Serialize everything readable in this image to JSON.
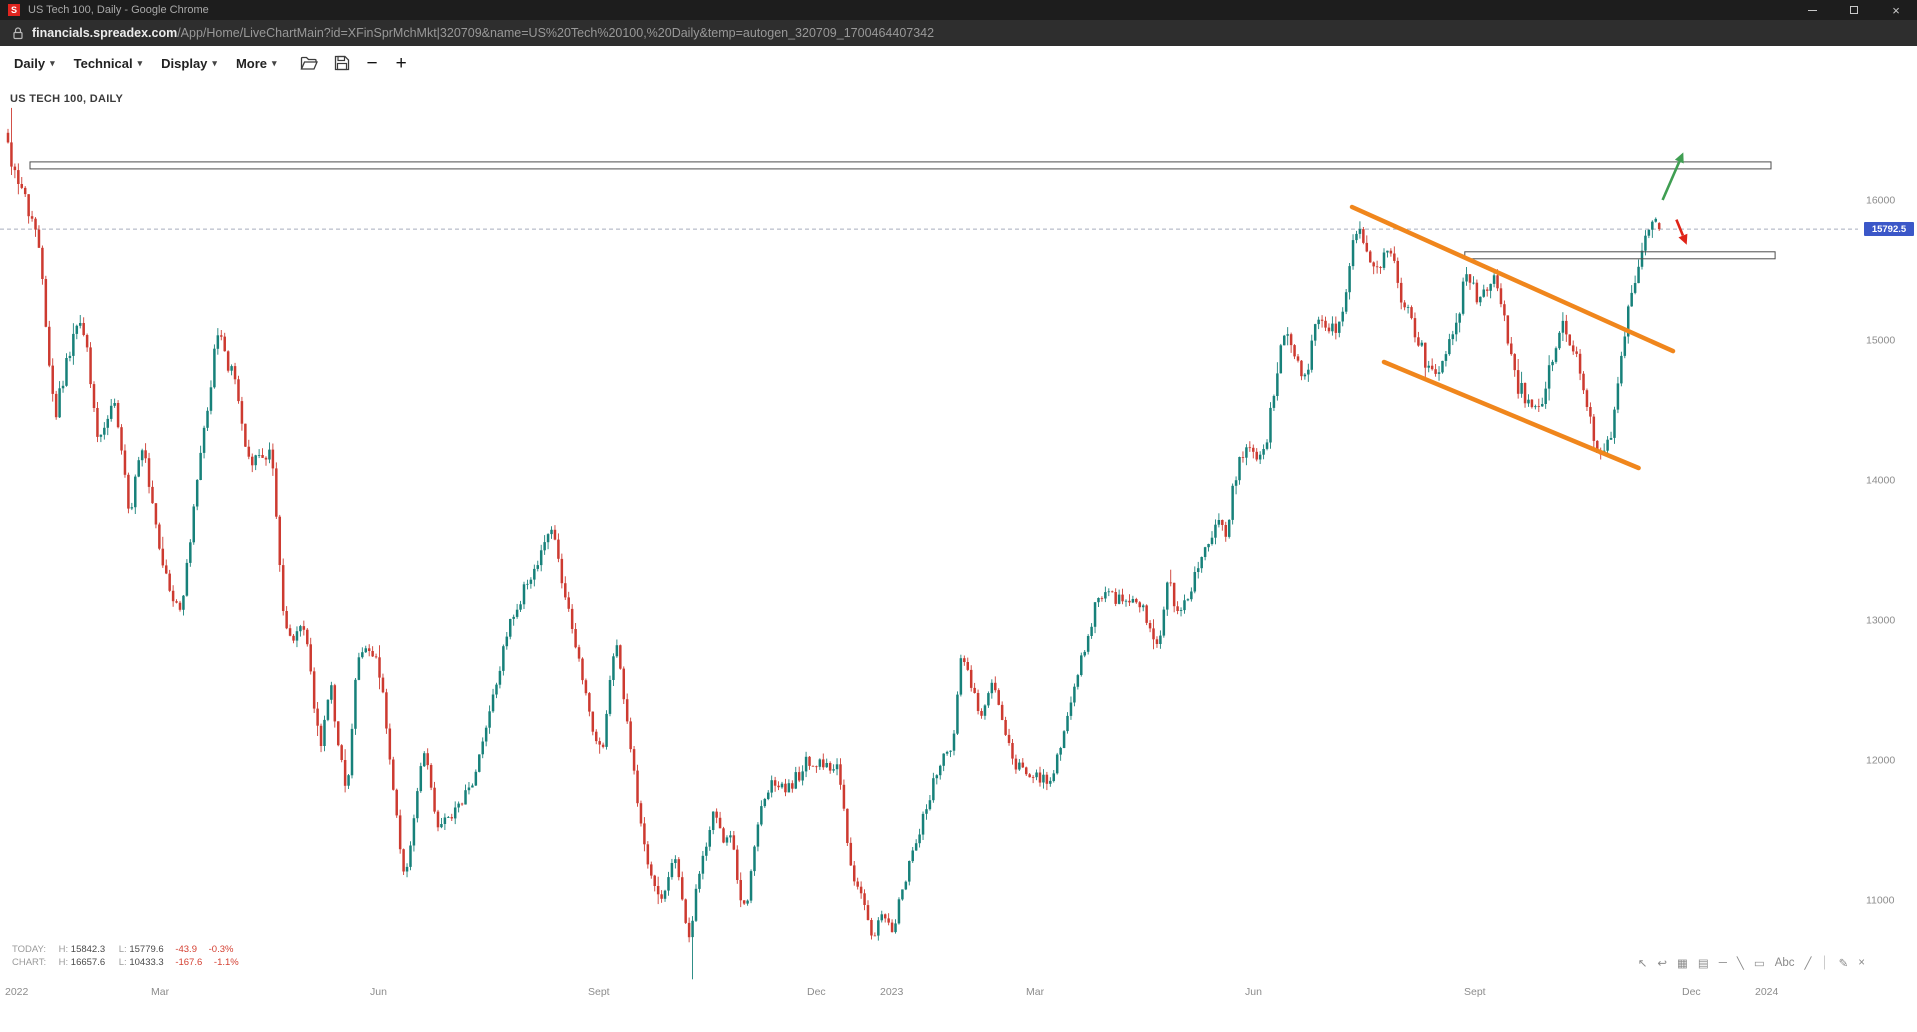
{
  "window": {
    "title": "US Tech 100, Daily - Google Chrome",
    "favicon_letter": "S",
    "controls": {
      "close": "×"
    }
  },
  "address_bar": {
    "domain": "financials.spreadex.com",
    "path": "/App/Home/LiveChartMain?id=XFinSprMchMkt|320709&name=US%20Tech%20100,%20Daily&temp=autogen_320709_1700464407342"
  },
  "toolbar": {
    "menus": [
      {
        "label": "Daily"
      },
      {
        "label": "Technical"
      },
      {
        "label": "Display"
      },
      {
        "label": "More"
      }
    ],
    "caret": "▾",
    "zoom_out": "−",
    "zoom_in": "+"
  },
  "chart": {
    "title": "US TECH 100, DAILY",
    "price_label": "15792.5",
    "badge_color": "#3b57c8",
    "stats": {
      "h_label": "H:",
      "l_label": "L:",
      "rows": [
        {
          "label": "TODAY:",
          "h": "15842.3",
          "l": "15779.6",
          "chg": "-43.9",
          "pct": "-0.3%"
        },
        {
          "label": "CHART:",
          "h": "16657.6",
          "l": "10433.3",
          "chg": "-167.6",
          "pct": "-1.1%"
        }
      ]
    },
    "draw_tools": [
      {
        "name": "pointer-tool",
        "glyph": "↖",
        "interactable": true
      },
      {
        "name": "connector-tool",
        "glyph": "↩",
        "interactable": true
      },
      {
        "name": "grid-tool",
        "glyph": "▦",
        "interactable": true
      },
      {
        "name": "chart-type-tool",
        "glyph": "▤",
        "interactable": true
      },
      {
        "name": "trendline-tool",
        "glyph": "─",
        "interactable": true
      },
      {
        "name": "ray-tool",
        "glyph": "╲",
        "interactable": true
      },
      {
        "name": "rectangle-tool",
        "glyph": "▭",
        "interactable": true
      },
      {
        "name": "text-tool",
        "glyph": "Abc",
        "interactable": true
      },
      {
        "name": "line-tool",
        "glyph": "╱",
        "interactable": true
      },
      {
        "name": "separator",
        "glyph": "│",
        "interactable": false
      },
      {
        "name": "pencil-tool",
        "glyph": "✎",
        "interactable": true
      },
      {
        "name": "close-tool",
        "glyph": "×",
        "interactable": true
      }
    ]
  },
  "chart_data": {
    "type": "candlestick",
    "title": "US TECH 100, DAILY",
    "instrument": "US Tech 100",
    "timeframe": "Daily",
    "current_price": 15792.5,
    "today": {
      "high": 15842.3,
      "low": 15779.6,
      "change": -43.9,
      "change_pct": -0.3
    },
    "range": {
      "high": 16657.6,
      "low": 10433.3
    },
    "num_candles": 481,
    "colors": {
      "up": "#17817a",
      "down": "#cd3a30",
      "channel": "#f0861c",
      "zone": "#4d4d4d",
      "dashed": "#a7adbd",
      "arrow_up": "#3f9e52",
      "arrow_down": "#e02418"
    },
    "y_ticks": [
      16000,
      15000,
      14000,
      13000,
      12000,
      11000
    ],
    "x_ticks": [
      {
        "l": "2022",
        "m": 0
      },
      {
        "l": "Mar",
        "m": 2
      },
      {
        "l": "Jun",
        "m": 5
      },
      {
        "l": "Sept",
        "m": 8
      },
      {
        "l": "Dec",
        "m": 11
      },
      {
        "l": "2023",
        "m": 12
      },
      {
        "l": "Mar",
        "m": 14
      },
      {
        "l": "Jun",
        "m": 17
      },
      {
        "l": "Sept",
        "m": 20
      },
      {
        "l": "Dec",
        "m": 23
      },
      {
        "l": "2024",
        "m": 24
      }
    ],
    "anchors": [
      [
        0,
        16480
      ],
      [
        1,
        16320
      ],
      [
        9,
        15750
      ],
      [
        14,
        14450
      ],
      [
        19,
        15000
      ],
      [
        22,
        15150
      ],
      [
        27,
        14250
      ],
      [
        31,
        14600
      ],
      [
        36,
        13700
      ],
      [
        37.5,
        14050
      ],
      [
        39.5,
        14240
      ],
      [
        46,
        13320
      ],
      [
        50.5,
        13050
      ],
      [
        61.5,
        15100
      ],
      [
        63.5,
        14840
      ],
      [
        66.5,
        14750
      ],
      [
        70.5,
        14100
      ],
      [
        77,
        14200
      ],
      [
        80.5,
        13000
      ],
      [
        83,
        12850
      ],
      [
        86.5,
        13000
      ],
      [
        91,
        12050
      ],
      [
        94,
        12560
      ],
      [
        99,
        11700
      ],
      [
        101.5,
        12680
      ],
      [
        105.5,
        12800
      ],
      [
        109,
        12600
      ],
      [
        111.5,
        12000
      ],
      [
        115.5,
        11100
      ],
      [
        121.5,
        12100
      ],
      [
        125.5,
        11500
      ],
      [
        135,
        11800
      ],
      [
        146,
        12950
      ],
      [
        158.5,
        13650
      ],
      [
        170,
        12270
      ],
      [
        173,
        12050
      ],
      [
        177,
        12900
      ],
      [
        185.5,
        11300
      ],
      [
        190.5,
        10970
      ],
      [
        194.5,
        11360
      ],
      [
        198.5,
        10600
      ],
      [
        200,
        11030
      ],
      [
        206,
        11670
      ],
      [
        208.5,
        11340
      ],
      [
        210,
        11550
      ],
      [
        214.5,
        10860
      ],
      [
        219.5,
        11710
      ],
      [
        222.5,
        11850
      ],
      [
        227,
        11780
      ],
      [
        232.5,
        12000
      ],
      [
        242,
        11950
      ],
      [
        245,
        11250
      ],
      [
        249,
        10980
      ],
      [
        252.5,
        10680
      ],
      [
        254,
        10940
      ],
      [
        257.5,
        10740
      ],
      [
        260,
        11050
      ],
      [
        272,
        12050
      ],
      [
        275,
        12100
      ],
      [
        277.5,
        12800
      ],
      [
        283.5,
        12300
      ],
      [
        286.5,
        12560
      ],
      [
        293,
        11970
      ],
      [
        303.5,
        11830
      ],
      [
        311,
        12600
      ],
      [
        317.5,
        13180
      ],
      [
        330,
        13100
      ],
      [
        334.5,
        12730
      ],
      [
        337,
        13240
      ],
      [
        341.5,
        13050
      ],
      [
        351.5,
        13700
      ],
      [
        355,
        13600
      ],
      [
        356,
        13940
      ],
      [
        360,
        14250
      ],
      [
        365,
        14150
      ],
      [
        371.5,
        15100
      ],
      [
        377.5,
        14680
      ],
      [
        381,
        15180
      ],
      [
        387,
        15050
      ],
      [
        392.5,
        15840
      ],
      [
        396.5,
        15560
      ],
      [
        399.5,
        15520
      ],
      [
        401.5,
        15750
      ],
      [
        405.5,
        15300
      ],
      [
        415.5,
        14700
      ],
      [
        422.5,
        15200
      ],
      [
        424,
        15500
      ],
      [
        427.5,
        15300
      ],
      [
        433.5,
        15440
      ],
      [
        438.5,
        14700
      ],
      [
        442.5,
        14560
      ],
      [
        446.5,
        14560
      ],
      [
        452.5,
        15100
      ],
      [
        456.5,
        14900
      ],
      [
        463.3,
        14100
      ],
      [
        467,
        14350
      ],
      [
        468.5,
        14780
      ],
      [
        474,
        15530
      ],
      [
        476.5,
        15810
      ],
      [
        479,
        15850
      ],
      [
        480,
        15792.5
      ]
    ],
    "overrides": [
      {
        "day": 1,
        "high": 16657.6
      },
      {
        "day": 199,
        "low": 10433.3
      },
      {
        "day": 480,
        "open": 15835,
        "close": 15792.5,
        "high": 15842.3,
        "low": 15779.6
      }
    ],
    "annotations": {
      "current_price_line": 15792.5,
      "zones": [
        {
          "d1": 6.4,
          "d2": 512.5,
          "p1": 16272,
          "p2": 16222
        },
        {
          "d1": 423.5,
          "d2": 513.7,
          "p1": 15630,
          "p2": 15580
        }
      ],
      "channel_lines": [
        {
          "d1": 390.7,
          "p1": 15950,
          "d2": 484,
          "p2": 14921
        },
        {
          "d1": 400,
          "p1": 14843,
          "d2": 474,
          "p2": 14086
        }
      ],
      "arrows": [
        {
          "d1": 481,
          "p1": 16000,
          "d2": 487,
          "p2": 16340,
          "color": "#3f9e52",
          "dir": "up"
        },
        {
          "d1": 485,
          "p1": 15860,
          "d2": 488,
          "p2": 15680,
          "color": "#e02418",
          "dir": "down"
        }
      ]
    }
  }
}
